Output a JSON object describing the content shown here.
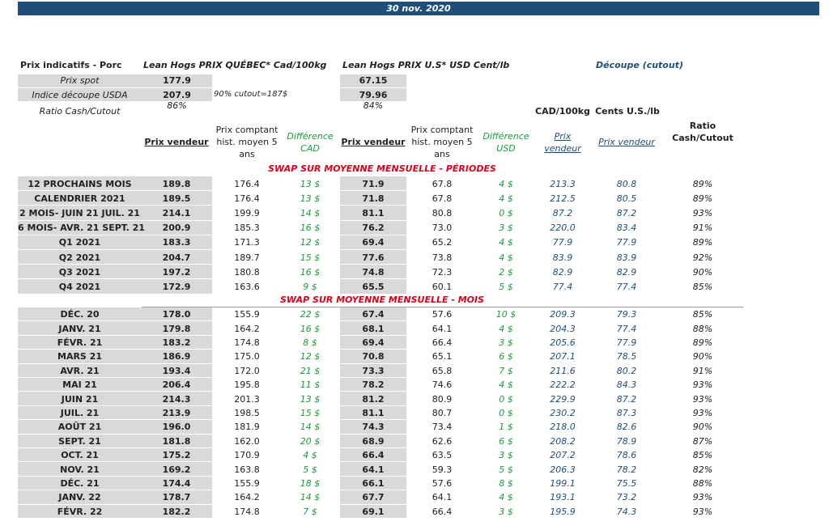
{
  "header": {
    "date": "30 nov. 2020"
  },
  "summary": {
    "title": "Prix indicatifs - Porc",
    "quebec_title": "Lean Hogs PRIX QUÉBEC* Cad/100kg",
    "us_title": "Lean Hogs PRIX U.S* USD Cent/lb",
    "cutout_title": "Découpe (cutout)",
    "note": "90% cutout=187$",
    "rows": [
      [
        "Prix spot",
        "177.9",
        "67.15"
      ],
      [
        "Indice découpe USDA",
        "207.9",
        "79.96"
      ],
      [
        "Ratio Cash/Cutout",
        "86%",
        "84%"
      ]
    ]
  },
  "units": [
    "CAD/100kg",
    "Cents U.S./lb"
  ],
  "columns": [
    "Prix vendeur",
    "Prix comptant hist. moyen 5 ans",
    "Différence CAD",
    "Prix vendeur",
    "Prix comptant hist. moyen 5 ans",
    "Différence USD",
    "Prix vendeur",
    "Prix vendeur",
    "Ratio Cash/Cutout"
  ],
  "sections": [
    {
      "title": "SWAP SUR MOYENNE MENSUELLE - PÉRIODES",
      "rows": [
        [
          "12 PROCHAINS MOIS",
          "189.8",
          "176.4",
          "13 $",
          "71.9",
          "67.8",
          "4 $",
          "213.3",
          "80.8",
          "89%"
        ],
        [
          "CALENDRIER 2021",
          "189.5",
          "176.4",
          "13 $",
          "71.8",
          "67.8",
          "4 $",
          "212.5",
          "80.5",
          "89%"
        ],
        [
          "2 MOIS- JUIN 21 JUIL. 21",
          "214.1",
          "199.9",
          "14 $",
          "81.1",
          "80.8",
          "0 $",
          "87.2",
          "87.2",
          "93%"
        ],
        [
          "6 MOIS- AVR. 21 SEPT. 21",
          "200.9",
          "185.3",
          "16 $",
          "76.2",
          "73.0",
          "3 $",
          "220.0",
          "83.4",
          "91%"
        ],
        [
          "Q1 2021",
          "183.3",
          "171.3",
          "12 $",
          "69.4",
          "65.2",
          "4 $",
          "77.9",
          "77.9",
          "89%"
        ],
        [
          "Q2 2021",
          "204.7",
          "189.7",
          "15 $",
          "77.6",
          "73.8",
          "4 $",
          "83.9",
          "83.9",
          "92%"
        ],
        [
          "Q3 2021",
          "197.2",
          "180.8",
          "16 $",
          "74.8",
          "72.3",
          "2 $",
          "82.9",
          "82.9",
          "90%"
        ],
        [
          "Q4 2021",
          "172.9",
          "163.6",
          "9 $",
          "65.5",
          "60.1",
          "5 $",
          "77.4",
          "77.4",
          "85%"
        ]
      ]
    },
    {
      "title": "SWAP SUR MOYENNE MENSUELLE - MOIS",
      "rows": [
        [
          "DÉC. 20",
          "178.0",
          "155.9",
          "22 $",
          "67.4",
          "57.6",
          "10 $",
          "209.3",
          "79.3",
          "85%"
        ],
        [
          "JANV. 21",
          "179.8",
          "164.2",
          "16 $",
          "68.1",
          "64.1",
          "4 $",
          "204.3",
          "77.4",
          "88%"
        ],
        [
          "FÉVR. 21",
          "183.2",
          "174.8",
          "8 $",
          "69.4",
          "66.4",
          "3 $",
          "205.6",
          "77.9",
          "89%"
        ],
        [
          "MARS 21",
          "186.9",
          "175.0",
          "12 $",
          "70.8",
          "65.1",
          "6 $",
          "207.1",
          "78.5",
          "90%"
        ],
        [
          "AVR. 21",
          "193.4",
          "172.0",
          "21 $",
          "73.3",
          "65.8",
          "7 $",
          "211.6",
          "80.2",
          "91%"
        ],
        [
          "MAI 21",
          "206.4",
          "195.8",
          "11 $",
          "78.2",
          "74.6",
          "4 $",
          "222.2",
          "84.3",
          "93%"
        ],
        [
          "JUIN 21",
          "214.3",
          "201.3",
          "13 $",
          "81.2",
          "80.9",
          "0 $",
          "229.9",
          "87.2",
          "93%"
        ],
        [
          "JUIL. 21",
          "213.9",
          "198.5",
          "15 $",
          "81.1",
          "80.7",
          "0 $",
          "230.2",
          "87.3",
          "93%"
        ],
        [
          "AOÛT 21",
          "196.0",
          "181.9",
          "14 $",
          "74.3",
          "73.4",
          "1 $",
          "218.0",
          "82.6",
          "90%"
        ],
        [
          "SEPT. 21",
          "181.8",
          "162.0",
          "20 $",
          "68.9",
          "62.6",
          "6 $",
          "208.2",
          "78.9",
          "87%"
        ],
        [
          "OCT. 21",
          "175.2",
          "170.9",
          "4 $",
          "66.4",
          "63.5",
          "3 $",
          "207.2",
          "78.6",
          "85%"
        ],
        [
          "NOV. 21",
          "169.2",
          "163.8",
          "5 $",
          "64.1",
          "59.3",
          "5 $",
          "206.3",
          "78.2",
          "82%"
        ],
        [
          "DÉC. 21",
          "174.4",
          "155.9",
          "18 $",
          "66.1",
          "57.6",
          "8 $",
          "199.1",
          "75.5",
          "88%"
        ],
        [
          "JANV. 22",
          "178.7",
          "164.2",
          "14 $",
          "67.7",
          "64.1",
          "4 $",
          "193.1",
          "73.2",
          "93%"
        ],
        [
          "FÉVR. 22",
          "182.2",
          "174.8",
          "7 $",
          "69.1",
          "66.4",
          "3 $",
          "195.9",
          "74.3",
          "93%"
        ]
      ]
    }
  ]
}
